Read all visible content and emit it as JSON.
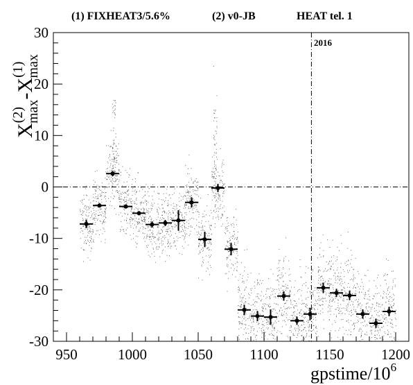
{
  "header": {
    "item1": "(1) FIXHEAT3/5.6%",
    "item2": "(2) v0-JB",
    "item3": "HEAT tel. 1"
  },
  "chart_data": {
    "type": "scatter",
    "title": "",
    "xlabel": "gpstime/10",
    "xlabel_sup": "6",
    "ylabel": {
      "base": "X",
      "sup1": "(2)",
      "sub1": "max",
      "minus": "-",
      "sup2": "(1)",
      "sub2": "max"
    },
    "xlim": [
      940,
      1210
    ],
    "ylim": [
      -30,
      30
    ],
    "x_ticks": [
      950,
      1000,
      1050,
      1100,
      1150,
      1200
    ],
    "y_ticks": [
      -30,
      -20,
      -10,
      0,
      10,
      20,
      30
    ],
    "grid": false,
    "reference_lines": {
      "horizontal_y": 0,
      "vertical_x": 1136,
      "vertical_label": "2016"
    },
    "profile": {
      "x_half_width": 5,
      "points": [
        {
          "x": 965,
          "y": -7.2,
          "yerr": 0.8
        },
        {
          "x": 975,
          "y": -3.6,
          "yerr": 0.4
        },
        {
          "x": 985,
          "y": 2.6,
          "yerr": 0.5
        },
        {
          "x": 995,
          "y": -3.8,
          "yerr": 0.4
        },
        {
          "x": 1005,
          "y": -5.1,
          "yerr": 0.4
        },
        {
          "x": 1015,
          "y": -7.3,
          "yerr": 0.6
        },
        {
          "x": 1025,
          "y": -7.0,
          "yerr": 0.6
        },
        {
          "x": 1035,
          "y": -6.5,
          "yerr": 2.0
        },
        {
          "x": 1045,
          "y": -3.0,
          "yerr": 1.0
        },
        {
          "x": 1055,
          "y": -10.2,
          "yerr": 1.5
        },
        {
          "x": 1065,
          "y": -0.2,
          "yerr": 0.8
        },
        {
          "x": 1075,
          "y": -12.1,
          "yerr": 1.2
        },
        {
          "x": 1085,
          "y": -23.9,
          "yerr": 1.0
        },
        {
          "x": 1095,
          "y": -25.1,
          "yerr": 1.0
        },
        {
          "x": 1105,
          "y": -25.3,
          "yerr": 1.5
        },
        {
          "x": 1115,
          "y": -21.2,
          "yerr": 0.9
        },
        {
          "x": 1125,
          "y": -26.0,
          "yerr": 0.8
        },
        {
          "x": 1135,
          "y": -24.7,
          "yerr": 1.2
        },
        {
          "x": 1145,
          "y": -19.6,
          "yerr": 1.0
        },
        {
          "x": 1155,
          "y": -20.6,
          "yerr": 0.8
        },
        {
          "x": 1165,
          "y": -21.1,
          "yerr": 0.9
        },
        {
          "x": 1175,
          "y": -24.7,
          "yerr": 0.9
        },
        {
          "x": 1185,
          "y": -26.5,
          "yerr": 0.9
        },
        {
          "x": 1195,
          "y": -24.2,
          "yerr": 0.9
        }
      ]
    }
  }
}
